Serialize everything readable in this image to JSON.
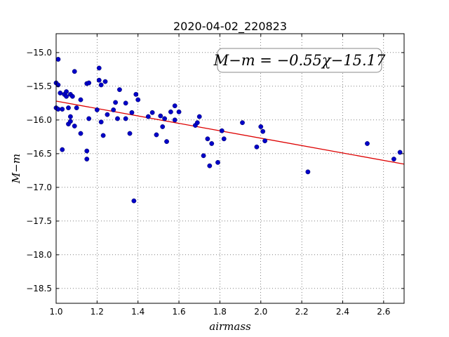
{
  "chart_data": {
    "type": "scatter",
    "title": "2020-04-02_220823",
    "xlabel": "airmass",
    "ylabel": "M−m",
    "xlim": [
      1.0,
      2.7
    ],
    "ylim": [
      -18.72,
      -14.72
    ],
    "y_inverted": true,
    "grid": true,
    "xticks": [
      "1.0",
      "1.2",
      "1.4",
      "1.6",
      "1.8",
      "2.0",
      "2.2",
      "2.4",
      "2.6"
    ],
    "xtick_values": [
      1.0,
      1.2,
      1.4,
      1.6,
      1.8,
      2.0,
      2.2,
      2.4,
      2.6
    ],
    "yticks": [
      "−15.0",
      "−15.5",
      "−16.0",
      "−16.5",
      "−17.0",
      "−17.5",
      "−18.0",
      "−18.5"
    ],
    "ytick_values": [
      -15.0,
      -15.5,
      -16.0,
      -16.5,
      -17.0,
      -17.5,
      -18.0,
      -18.5
    ],
    "annotation": "M−m = −0.55χ−15.17",
    "fit": {
      "slope": -0.55,
      "intercept": -15.17,
      "color": "#dd0000"
    },
    "point_color": "#0000c8",
    "points": [
      [
        1.0,
        -15.45
      ],
      [
        1.01,
        -15.1
      ],
      [
        1.01,
        -15.48
      ],
      [
        1.0,
        -15.82
      ],
      [
        1.01,
        -15.84
      ],
      [
        1.02,
        -15.6
      ],
      [
        1.03,
        -15.84
      ],
      [
        1.03,
        -16.44
      ],
      [
        1.04,
        -15.62
      ],
      [
        1.05,
        -15.58
      ],
      [
        1.05,
        -15.65
      ],
      [
        1.06,
        -15.82
      ],
      [
        1.06,
        -16.06
      ],
      [
        1.07,
        -15.95
      ],
      [
        1.07,
        -16.02
      ],
      [
        1.07,
        -15.62
      ],
      [
        1.08,
        -15.65
      ],
      [
        1.09,
        -15.28
      ],
      [
        1.09,
        -16.09
      ],
      [
        1.1,
        -15.82
      ],
      [
        1.12,
        -15.7
      ],
      [
        1.12,
        -16.2
      ],
      [
        1.15,
        -15.46
      ],
      [
        1.15,
        -16.58
      ],
      [
        1.15,
        -16.46
      ],
      [
        1.16,
        -15.45
      ],
      [
        1.16,
        -15.98
      ],
      [
        1.2,
        -15.85
      ],
      [
        1.21,
        -15.23
      ],
      [
        1.21,
        -15.41
      ],
      [
        1.22,
        -15.48
      ],
      [
        1.22,
        -16.03
      ],
      [
        1.23,
        -16.23
      ],
      [
        1.24,
        -15.43
      ],
      [
        1.25,
        -15.92
      ],
      [
        1.28,
        -15.85
      ],
      [
        1.29,
        -15.74
      ],
      [
        1.3,
        -15.98
      ],
      [
        1.31,
        -15.55
      ],
      [
        1.34,
        -15.98
      ],
      [
        1.34,
        -15.75
      ],
      [
        1.36,
        -16.2
      ],
      [
        1.37,
        -15.89
      ],
      [
        1.38,
        -17.2
      ],
      [
        1.39,
        -15.62
      ],
      [
        1.4,
        -15.7
      ],
      [
        1.45,
        -15.95
      ],
      [
        1.47,
        -15.89
      ],
      [
        1.49,
        -16.22
      ],
      [
        1.51,
        -15.94
      ],
      [
        1.52,
        -16.1
      ],
      [
        1.53,
        -15.98
      ],
      [
        1.54,
        -16.32
      ],
      [
        1.56,
        -15.88
      ],
      [
        1.58,
        -15.79
      ],
      [
        1.58,
        -16.0
      ],
      [
        1.6,
        -15.88
      ],
      [
        1.68,
        -16.08
      ],
      [
        1.69,
        -16.04
      ],
      [
        1.7,
        -15.95
      ],
      [
        1.72,
        -16.53
      ],
      [
        1.74,
        -16.28
      ],
      [
        1.75,
        -16.68
      ],
      [
        1.76,
        -16.35
      ],
      [
        1.79,
        -16.63
      ],
      [
        1.81,
        -16.16
      ],
      [
        1.82,
        -16.28
      ],
      [
        1.91,
        -16.04
      ],
      [
        1.98,
        -16.4
      ],
      [
        2.0,
        -16.1
      ],
      [
        2.01,
        -16.17
      ],
      [
        2.02,
        -16.31
      ],
      [
        2.23,
        -16.77
      ],
      [
        2.52,
        -16.35
      ],
      [
        2.65,
        -16.58
      ],
      [
        2.68,
        -16.48
      ]
    ]
  }
}
